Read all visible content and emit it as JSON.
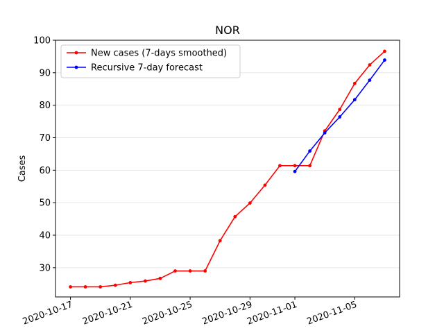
{
  "chart_data": {
    "type": "line",
    "title": "NOR",
    "xlabel": "",
    "ylabel": "Cases",
    "ylim": [
      21,
      100
    ],
    "xlim": [
      "2020-10-16",
      "2020-11-08"
    ],
    "grid": "horizontal",
    "legend_position": "top-left",
    "x_ticks": [
      "2020-10-17",
      "2020-10-21",
      "2020-10-25",
      "2020-10-29",
      "2020-11-01",
      "2020-11-05"
    ],
    "y_ticks": [
      30,
      40,
      50,
      60,
      70,
      80,
      90,
      100
    ],
    "series": [
      {
        "name": "New cases (7-days smoothed)",
        "color": "#ff0000",
        "x": [
          "2020-10-17",
          "2020-10-18",
          "2020-10-19",
          "2020-10-20",
          "2020-10-21",
          "2020-10-22",
          "2020-10-23",
          "2020-10-24",
          "2020-10-25",
          "2020-10-26",
          "2020-10-27",
          "2020-10-28",
          "2020-10-29",
          "2020-10-30",
          "2020-10-31",
          "2020-11-01",
          "2020-11-02",
          "2020-11-03",
          "2020-11-04",
          "2020-11-05",
          "2020-11-06",
          "2020-11-07"
        ],
        "values": [
          24.1,
          24.1,
          24.1,
          24.6,
          25.4,
          25.9,
          26.7,
          29.0,
          29.0,
          29.0,
          38.3,
          45.7,
          49.9,
          55.4,
          61.4,
          61.4,
          61.4,
          72.1,
          78.7,
          86.7,
          92.4,
          96.6
        ]
      },
      {
        "name": "Recursive 7-day forecast",
        "color": "#0000ff",
        "x": [
          "2020-11-01",
          "2020-11-02",
          "2020-11-03",
          "2020-11-04",
          "2020-11-05",
          "2020-11-06",
          "2020-11-07"
        ],
        "values": [
          59.6,
          65.9,
          71.5,
          76.4,
          81.7,
          87.7,
          93.9
        ]
      }
    ]
  }
}
